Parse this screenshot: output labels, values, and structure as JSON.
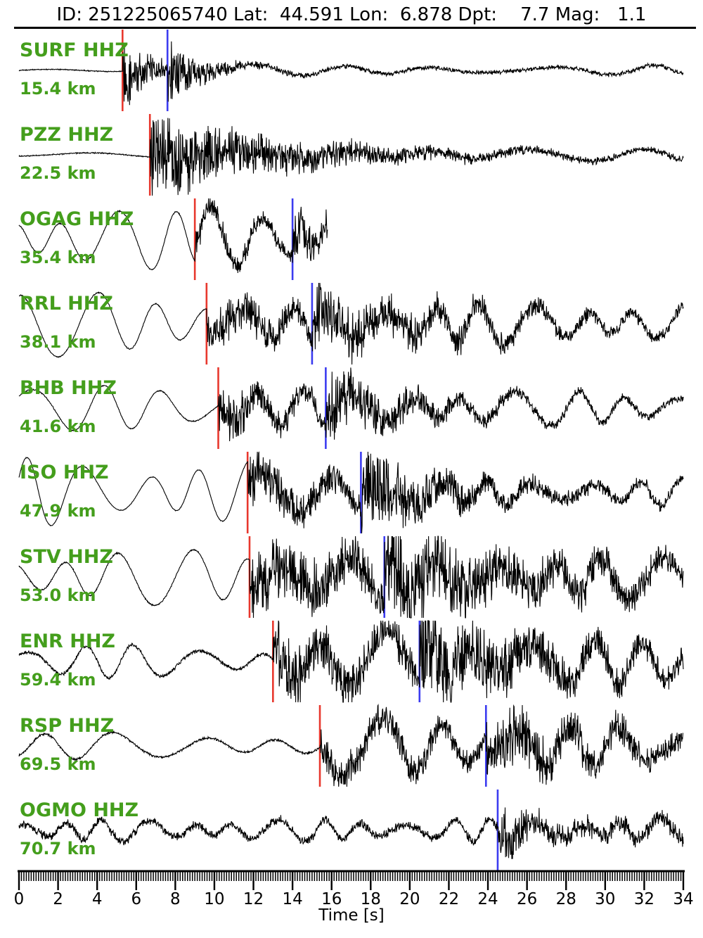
{
  "header": {
    "title": "ID: 251225065740 Lat:  44.591 Lon:  6.878 Dpt:    7.7 Mag:   1.1"
  },
  "colors": {
    "background": "#ffffff",
    "trace": "#000000",
    "axis": "#000000",
    "station_label": "#449e1c",
    "red_pick": "#e8382e",
    "blue_pick": "#3c3cf0"
  },
  "chart_data": {
    "type": "line",
    "title": "ID: 251225065740 Lat:  44.591 Lon:  6.878 Dpt:    7.7 Mag:   1.1",
    "xlabel": "Time [s]",
    "xlim": [
      0,
      34
    ],
    "x_major_ticks": [
      0,
      2,
      4,
      6,
      8,
      10,
      12,
      14,
      16,
      18,
      20,
      22,
      24,
      26,
      28,
      30,
      32,
      34
    ],
    "x_minor_tick_step": 0.125,
    "grid": false,
    "legend": "none",
    "stations": [
      {
        "name": "SURF HHZ",
        "distance": "15.4 km",
        "red_pick_s": 5.3,
        "blue_pick_s": 7.6,
        "trace_end_s": 34,
        "waveform": {
          "preLF": [
            3,
            8
          ],
          "preHF": 0.6,
          "pHF": 52,
          "pDecay": 1.1,
          "midLF": [
            4,
            3
          ],
          "sHF": 32,
          "sDecay": 1.8,
          "postLF": [
            7,
            5.2
          ],
          "postHF": 2.2
        }
      },
      {
        "name": "PZZ HHZ",
        "distance": "22.5 km",
        "red_pick_s": 6.7,
        "blue_pick_s": null,
        "trace_end_s": 34,
        "waveform": {
          "preLF": [
            4,
            9
          ],
          "preHF": 0.7,
          "pHF": 52,
          "pDecay": 7,
          "midLF": [
            8,
            5
          ],
          "sHF": 0,
          "sDecay": 1,
          "postLF": [
            8,
            5
          ],
          "postHF": 2
        }
      },
      {
        "name": "OGAG HHZ",
        "distance": "35.4 km",
        "red_pick_s": 9.0,
        "blue_pick_s": 14.0,
        "trace_end_s": 15.8,
        "waveform": {
          "preLF": [
            40,
            2.7
          ],
          "preHF": 0.8,
          "pHF": 14,
          "pDecay": 4,
          "midLF": [
            46,
            3.3
          ],
          "sHF": 22,
          "sDecay": 2.5,
          "postLF": [
            26,
            1.6
          ],
          "postHF": 4
        }
      },
      {
        "name": "RRL HHZ",
        "distance": "38.1 km",
        "red_pick_s": 9.6,
        "blue_pick_s": 15.0,
        "trace_end_s": 34,
        "waveform": {
          "preLF": [
            44,
            3.2
          ],
          "preHF": 0.7,
          "pHF": 24,
          "pDecay": 8,
          "midLF": [
            20,
            2.7
          ],
          "sHF": 30,
          "sDecay": 6,
          "postLF": [
            28,
            2.6
          ],
          "postHF": 4
        }
      },
      {
        "name": "BHB HHZ",
        "distance": "41.6 km",
        "red_pick_s": 10.2,
        "blue_pick_s": 15.7,
        "trace_end_s": 34,
        "waveform": {
          "preLF": [
            30,
            3.6
          ],
          "preHF": 0.7,
          "pHF": 26,
          "pDecay": 5,
          "midLF": [
            26,
            2.9
          ],
          "sHF": 38,
          "sDecay": 3.5,
          "postLF": [
            24,
            2.8
          ],
          "postHF": 4
        }
      },
      {
        "name": "ISO HHZ",
        "distance": "47.9 km",
        "red_pick_s": 11.7,
        "blue_pick_s": 17.5,
        "trace_end_s": 34,
        "waveform": {
          "preLF": [
            46,
            2.9
          ],
          "preHF": 0.5,
          "pHF": 30,
          "pDecay": 6,
          "midLF": [
            26,
            3.0
          ],
          "sHF": 38,
          "sDecay": 4,
          "postLF": [
            18,
            2.6
          ],
          "postHF": 5
        }
      },
      {
        "name": "STV HHZ",
        "distance": "53.0 km",
        "red_pick_s": 11.8,
        "blue_pick_s": 18.7,
        "trace_end_s": 34,
        "waveform": {
          "preLF": [
            38,
            3.1
          ],
          "preHF": 0.9,
          "pHF": 38,
          "pDecay": 12,
          "midLF": [
            30,
            2.9
          ],
          "sHF": 40,
          "sDecay": 6,
          "postLF": [
            28,
            2.8
          ],
          "postHF": 6
        }
      },
      {
        "name": "ENR HHZ",
        "distance": "59.4 km",
        "red_pick_s": 13.0,
        "blue_pick_s": 20.5,
        "trace_end_s": 34,
        "waveform": {
          "preLF": [
            22,
            3.0
          ],
          "preHF": 2.2,
          "pHF": 34,
          "pDecay": 10,
          "midLF": [
            38,
            3.1
          ],
          "sHF": 38,
          "sDecay": 6,
          "postLF": [
            32,
            2.9
          ],
          "postHF": 5
        }
      },
      {
        "name": "RSP HHZ",
        "distance": "69.5 km",
        "red_pick_s": 15.4,
        "blue_pick_s": 23.9,
        "trace_end_s": 34,
        "waveform": {
          "preLF": [
            18,
            3.9
          ],
          "preHF": 1.4,
          "pHF": 18,
          "pDecay": 10,
          "midLF": [
            38,
            3.4
          ],
          "sHF": 30,
          "sDecay": 5,
          "postLF": [
            28,
            3.0
          ],
          "postHF": 6
        }
      },
      {
        "name": "OGMO HHZ",
        "distance": "70.7 km",
        "red_pick_s": null,
        "blue_pick_s": 24.5,
        "trace_end_s": 34,
        "waveform": {
          "preLF": [
            15,
            2.2
          ],
          "preHF": 5.5,
          "pHF": 0,
          "pDecay": 1,
          "midLF": [
            15,
            2.2
          ],
          "sHF": 30,
          "sDecay": 1.6,
          "postLF": [
            15,
            2.4
          ],
          "postHF": 6
        }
      }
    ]
  }
}
